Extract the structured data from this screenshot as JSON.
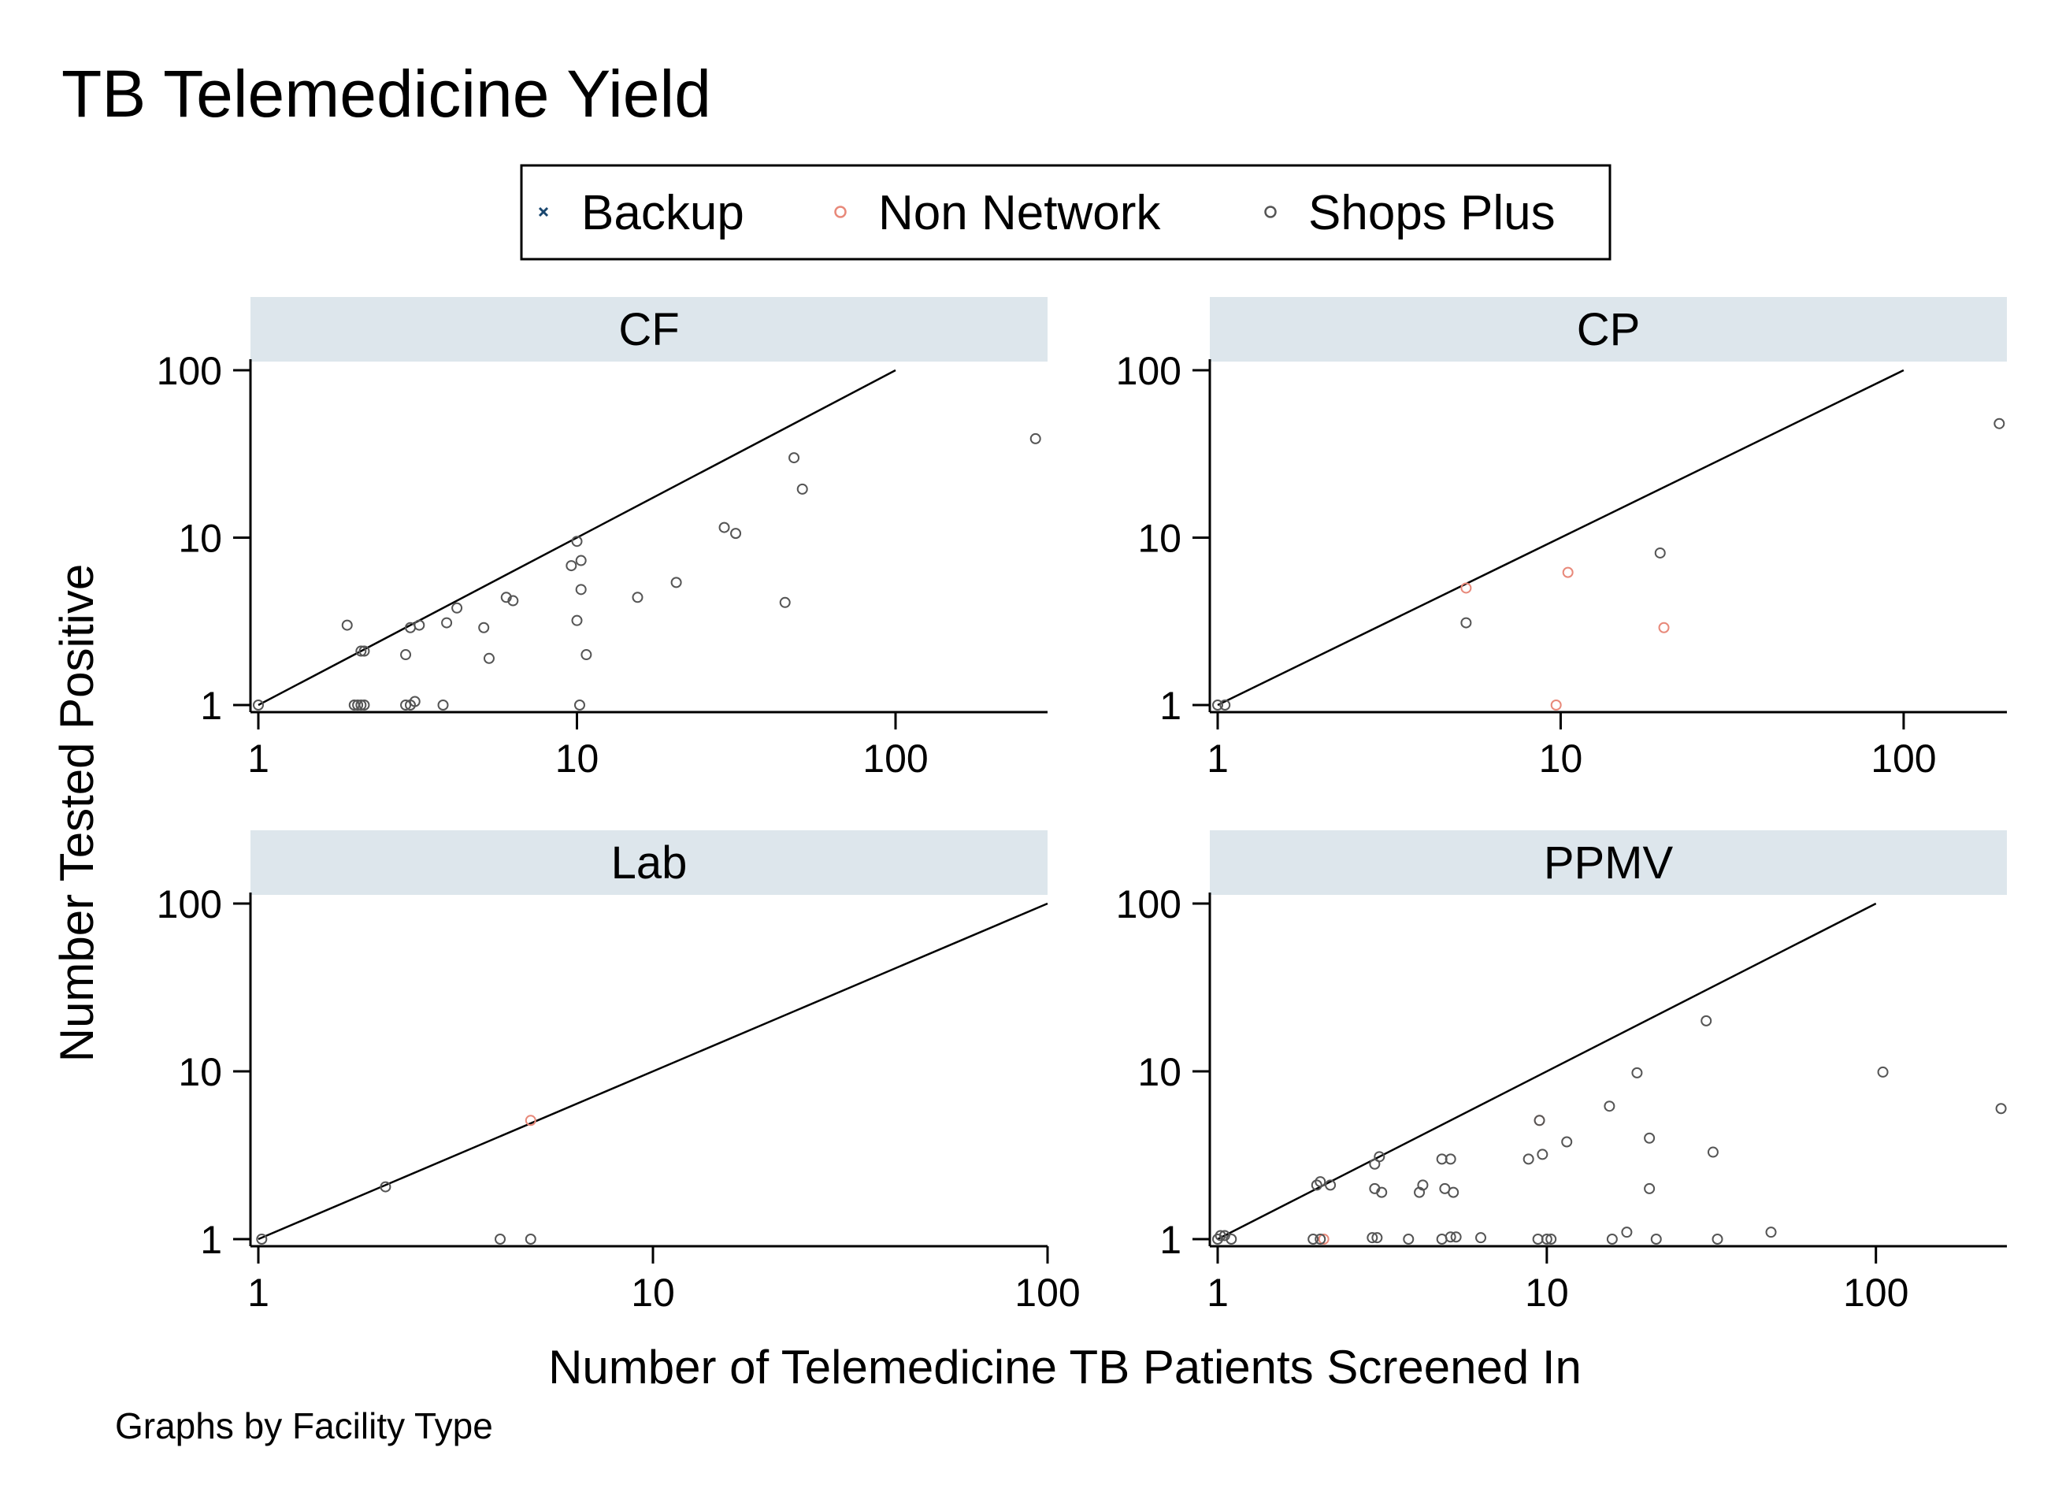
{
  "page": {
    "title": "TB Telemedicine Yield",
    "note": "Graphs by Facility Type"
  },
  "colors": {
    "strip_fill": "#dde6ec",
    "Backup": "#1a476f",
    "Non Network": "#e8897a",
    "Shops Plus": "#555555",
    "reference_line": "#000000"
  },
  "chart_data": {
    "type": "scatter",
    "title": "TB Telemedicine Yield",
    "xlabel": "Number of Telemedicine TB Patients Screened In",
    "ylabel": "Number Tested Positive",
    "xscale": "log",
    "yscale": "log",
    "grid": false,
    "legend": {
      "placement": "top",
      "entries": [
        {
          "name": "Backup",
          "marker": "x"
        },
        {
          "name": "Non Network",
          "marker": "o"
        },
        {
          "name": "Shops Plus",
          "marker": "o"
        }
      ]
    },
    "reference_line": {
      "x": [
        1,
        100
      ],
      "y": [
        1,
        100
      ]
    },
    "panels": [
      {
        "name": "CF",
        "xlim": [
          1,
          300
        ],
        "ylim": [
          1,
          100
        ],
        "xticks": [
          "1",
          "10",
          "100"
        ],
        "yticks": [
          "1",
          "10",
          "100"
        ],
        "series": [
          {
            "name": "Backup",
            "points": []
          },
          {
            "name": "Non Network",
            "points": []
          },
          {
            "name": "Shops Plus",
            "points": [
              [
                1,
                1
              ],
              [
                2,
                1
              ],
              [
                2.05,
                1
              ],
              [
                2.1,
                1
              ],
              [
                2.15,
                1
              ],
              [
                2.9,
                1
              ],
              [
                3,
                1
              ],
              [
                3.1,
                1.05
              ],
              [
                3.8,
                1
              ],
              [
                10.2,
                1
              ],
              [
                1.9,
                3
              ],
              [
                2.1,
                2.1
              ],
              [
                2.15,
                2.1
              ],
              [
                2.9,
                2
              ],
              [
                3,
                2.9
              ],
              [
                3.2,
                3
              ],
              [
                3.9,
                3.1
              ],
              [
                4.2,
                3.8
              ],
              [
                5.1,
                2.9
              ],
              [
                5.3,
                1.9
              ],
              [
                6,
                4.4
              ],
              [
                6.3,
                4.2
              ],
              [
                9.6,
                6.8
              ],
              [
                10,
                9.5
              ],
              [
                10.3,
                7.3
              ],
              [
                10.3,
                4.9
              ],
              [
                10.7,
                2
              ],
              [
                10,
                3.2
              ],
              [
                15.5,
                4.4
              ],
              [
                20.5,
                5.4
              ],
              [
                29,
                11.5
              ],
              [
                31.5,
                10.6
              ],
              [
                45,
                4.1
              ],
              [
                48,
                30
              ],
              [
                51,
                19.5
              ],
              [
                275,
                39
              ]
            ]
          }
        ]
      },
      {
        "name": "CP",
        "xlim": [
          1,
          200
        ],
        "ylim": [
          1,
          100
        ],
        "xticks": [
          "1",
          "10",
          "100"
        ],
        "yticks": [
          "1",
          "10",
          "100"
        ],
        "series": [
          {
            "name": "Backup",
            "points": []
          },
          {
            "name": "Non Network",
            "points": [
              [
                5.3,
                5
              ],
              [
                9.7,
                1
              ],
              [
                10.5,
                6.2
              ],
              [
                20,
                2.9
              ]
            ]
          },
          {
            "name": "Shops Plus",
            "points": [
              [
                1,
                1
              ],
              [
                1.05,
                1
              ],
              [
                5.3,
                3.1
              ],
              [
                19.5,
                8.1
              ],
              [
                190,
                48
              ]
            ]
          }
        ]
      },
      {
        "name": "Lab",
        "xlim": [
          1,
          100
        ],
        "ylim": [
          1,
          100
        ],
        "xticks": [
          "1",
          "10",
          "100"
        ],
        "yticks": [
          "1",
          "10",
          "100"
        ],
        "series": [
          {
            "name": "Backup",
            "points": []
          },
          {
            "name": "Non Network",
            "points": [
              [
                4.9,
                5.1
              ]
            ]
          },
          {
            "name": "Shops Plus",
            "points": [
              [
                1.02,
                1
              ],
              [
                2.1,
                2.05
              ],
              [
                4.1,
                1
              ],
              [
                4.9,
                1
              ]
            ]
          }
        ]
      },
      {
        "name": "PPMV",
        "xlim": [
          1,
          250
        ],
        "ylim": [
          1,
          100
        ],
        "xticks": [
          "1",
          "10",
          "100"
        ],
        "yticks": [
          "1",
          "10",
          "100"
        ],
        "series": [
          {
            "name": "Backup",
            "points": []
          },
          {
            "name": "Non Network",
            "points": [
              [
                2.1,
                1
              ],
              [
                9.5,
                5.1
              ]
            ]
          },
          {
            "name": "Shops Plus",
            "points": [
              [
                1,
                1
              ],
              [
                1.02,
                1.05
              ],
              [
                1.05,
                1.05
              ],
              [
                1.1,
                1
              ],
              [
                1.95,
                1
              ],
              [
                2.05,
                1
              ],
              [
                2.95,
                1.02
              ],
              [
                3.05,
                1.02
              ],
              [
                3.8,
                1
              ],
              [
                4.8,
                1
              ],
              [
                5.1,
                1.03
              ],
              [
                5.3,
                1.03
              ],
              [
                6.3,
                1.02
              ],
              [
                9.4,
                1
              ],
              [
                10,
                1
              ],
              [
                10.3,
                1
              ],
              [
                15.8,
                1
              ],
              [
                21.5,
                1
              ],
              [
                33,
                1
              ],
              [
                17.5,
                1.1
              ],
              [
                48,
                1.1
              ],
              [
                2,
                2.1
              ],
              [
                2.05,
                2.2
              ],
              [
                2.2,
                2.1
              ],
              [
                3,
                2.8
              ],
              [
                3.1,
                3.1
              ],
              [
                3,
                2
              ],
              [
                3.15,
                1.9
              ],
              [
                4.1,
                1.9
              ],
              [
                4.2,
                2.1
              ],
              [
                4.8,
                3
              ],
              [
                5.1,
                3
              ],
              [
                4.9,
                2
              ],
              [
                5.2,
                1.9
              ],
              [
                8.8,
                3
              ],
              [
                9.7,
                3.2
              ],
              [
                9.5,
                5.1
              ],
              [
                11.5,
                3.8
              ],
              [
                15.5,
                6.2
              ],
              [
                20.5,
                4
              ],
              [
                20.5,
                2
              ],
              [
                18.8,
                9.8
              ],
              [
                32,
                3.3
              ],
              [
                30.5,
                20
              ],
              [
                105,
                9.9
              ],
              [
                240,
                6
              ]
            ]
          }
        ]
      }
    ]
  }
}
